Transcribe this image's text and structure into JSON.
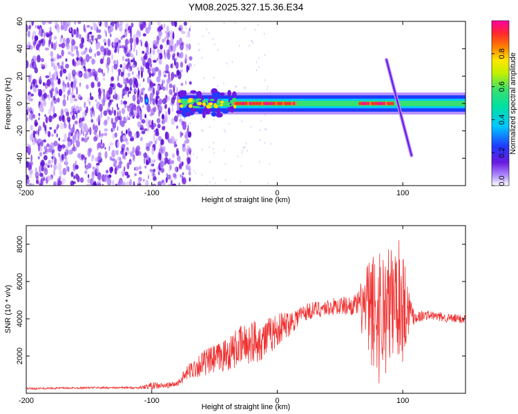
{
  "title": "YM08.2025.327.15.36.E34",
  "colors": {
    "signal": "#ef3030",
    "spec_purple": "#8a2be2",
    "spec_blue": "#1e3cff",
    "spec_green": "#38e070",
    "spec_red": "#ff2a2a"
  },
  "chart_data": [
    {
      "type": "heatmap",
      "title": "YM08.2025.327.15.36.E34",
      "xlabel": "Height of straight line (km)",
      "ylabel": "Frequency (Hz)",
      "xlim": [
        -200,
        150
      ],
      "ylim": [
        -60,
        60
      ],
      "xticks": [
        -200,
        -100,
        0,
        100
      ],
      "yticks": [
        -60,
        -40,
        -20,
        0,
        20,
        40,
        60
      ],
      "colorbar": {
        "label": "Normalized spectral amplitude",
        "range": [
          0,
          1
        ],
        "ticks": [
          "0.0",
          "0.2",
          "0.4",
          "0.6",
          "0.8"
        ],
        "tick_values": [
          0.0,
          0.2,
          0.4,
          0.6,
          0.8
        ],
        "colormap": [
          "#ffffff",
          "#8a2be2",
          "#1e3cff",
          "#00e5ff",
          "#38e070",
          "#ffe600",
          "#ff8000",
          "#ff2a2a",
          "#ff00a0"
        ]
      },
      "features": {
        "noise_region_x": [
          -200,
          -75
        ],
        "band_center_hz": 0,
        "band_halfwidth_hz": 6,
        "peak_segments_x": [
          [
            -35,
            15
          ],
          [
            65,
            92
          ]
        ],
        "chirp_segment": {
          "x": [
            87,
            107
          ],
          "freq": [
            32,
            -38
          ]
        }
      }
    },
    {
      "type": "line",
      "xlabel": "Height of straight line (km)",
      "ylabel": "SNR (10 * v/v)",
      "xlim": [
        -200,
        150
      ],
      "ylim": [
        0,
        9000
      ],
      "xticks": [
        -200,
        -100,
        0,
        100
      ],
      "yticks": [
        2000,
        4000,
        6000,
        8000
      ],
      "series": [
        {
          "name": "SNR",
          "x": [
            -200,
            -150,
            -110,
            -100,
            -90,
            -80,
            -70,
            -60,
            -50,
            -40,
            -30,
            -20,
            -10,
            0,
            10,
            20,
            30,
            40,
            50,
            60,
            65,
            70,
            75,
            80,
            85,
            90,
            95,
            100,
            105,
            110,
            120,
            130,
            140,
            150
          ],
          "y": [
            250,
            300,
            300,
            400,
            400,
            500,
            1200,
            1600,
            1800,
            2100,
            2500,
            2800,
            2900,
            3400,
            3800,
            4300,
            4500,
            4600,
            4700,
            4700,
            4800,
            4500,
            4400,
            4300,
            4400,
            4600,
            5200,
            4900,
            4500,
            4100,
            4200,
            4100,
            4000,
            4000
          ],
          "noise_amplitude": [
            50,
            50,
            60,
            200,
            150,
            150,
            450,
            700,
            800,
            900,
            1100,
            1200,
            1100,
            900,
            700,
            500,
            450,
            450,
            500,
            500,
            700,
            2500,
            3000,
            4000,
            3500,
            3500,
            3000,
            3500,
            1200,
            350,
            250,
            250,
            250,
            250
          ]
        }
      ]
    }
  ]
}
